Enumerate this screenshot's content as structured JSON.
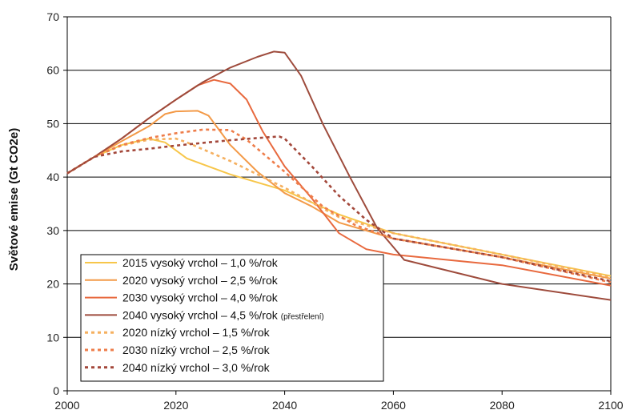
{
  "chart_data": {
    "type": "line",
    "ylabel": "Světové emise (Gt CO2e)",
    "xlim": [
      2000,
      2100
    ],
    "ylim": [
      0,
      70
    ],
    "x_ticks": [
      "2000",
      "2020",
      "2040",
      "2060",
      "2080",
      "2100"
    ],
    "y_ticks": [
      "0",
      "10",
      "20",
      "30",
      "40",
      "50",
      "60",
      "70"
    ],
    "grid": "horizontal",
    "legend_position": "bottom-left",
    "series": [
      {
        "name": "2015 vysoký vrchol – 1,0 %/rok",
        "color": "#f7c64a",
        "dash": "solid",
        "points": [
          [
            2000,
            40.7
          ],
          [
            2005,
            43.8
          ],
          [
            2010,
            46.0
          ],
          [
            2015,
            47.2
          ],
          [
            2018,
            46.5
          ],
          [
            2022,
            43.5
          ],
          [
            2030,
            40.5
          ],
          [
            2040,
            37.5
          ],
          [
            2050,
            33.0
          ],
          [
            2060,
            29.5
          ],
          [
            2080,
            25.5
          ],
          [
            2100,
            21.5
          ]
        ]
      },
      {
        "name": "2020 vysoký vrchol – 2,5 %/rok",
        "color": "#f39a48",
        "dash": "solid",
        "points": [
          [
            2000,
            40.7
          ],
          [
            2005,
            43.8
          ],
          [
            2010,
            46.7
          ],
          [
            2015,
            49.5
          ],
          [
            2018,
            51.8
          ],
          [
            2020,
            52.3
          ],
          [
            2024,
            52.4
          ],
          [
            2026,
            51.5
          ],
          [
            2030,
            46.0
          ],
          [
            2035,
            41.0
          ],
          [
            2040,
            37.0
          ],
          [
            2045,
            34.5
          ],
          [
            2050,
            31.5
          ],
          [
            2060,
            28.5
          ],
          [
            2080,
            25.0
          ],
          [
            2100,
            21.0
          ]
        ]
      },
      {
        "name": "2030 vysoký vrchol – 4,0 %/rok",
        "color": "#e8693e",
        "dash": "solid",
        "points": [
          [
            2000,
            40.7
          ],
          [
            2005,
            43.8
          ],
          [
            2010,
            47.2
          ],
          [
            2015,
            51.0
          ],
          [
            2020,
            54.5
          ],
          [
            2024,
            57.2
          ],
          [
            2027,
            58.2
          ],
          [
            2030,
            57.5
          ],
          [
            2033,
            54.5
          ],
          [
            2036,
            48.5
          ],
          [
            2040,
            42.0
          ],
          [
            2045,
            36.0
          ],
          [
            2050,
            29.5
          ],
          [
            2055,
            26.5
          ],
          [
            2060,
            25.5
          ],
          [
            2080,
            23.5
          ],
          [
            2100,
            19.7
          ]
        ]
      },
      {
        "name": "2040 vysoký vrchol – 4,5 %/rok",
        "note": "(přestřelení)",
        "color": "#9e4b3c",
        "dash": "solid",
        "points": [
          [
            2000,
            40.7
          ],
          [
            2005,
            43.8
          ],
          [
            2010,
            47.2
          ],
          [
            2015,
            51.0
          ],
          [
            2020,
            54.5
          ],
          [
            2025,
            57.8
          ],
          [
            2030,
            60.5
          ],
          [
            2035,
            62.5
          ],
          [
            2038,
            63.5
          ],
          [
            2040,
            63.3
          ],
          [
            2043,
            59.0
          ],
          [
            2047,
            50.0
          ],
          [
            2052,
            40.0
          ],
          [
            2057,
            30.5
          ],
          [
            2062,
            24.5
          ],
          [
            2068,
            23.0
          ],
          [
            2080,
            20.0
          ],
          [
            2100,
            17.0
          ]
        ]
      },
      {
        "name": "2020 nízký vrchol – 1,5 %/rok",
        "color": "#f5b060",
        "dash": "dotted",
        "points": [
          [
            2000,
            40.7
          ],
          [
            2005,
            43.8
          ],
          [
            2010,
            45.9
          ],
          [
            2015,
            47.0
          ],
          [
            2020,
            47.2
          ],
          [
            2022,
            46.5
          ],
          [
            2030,
            43.0
          ],
          [
            2040,
            38.0
          ],
          [
            2050,
            32.5
          ],
          [
            2060,
            29.5
          ],
          [
            2080,
            25.5
          ],
          [
            2100,
            21.3
          ]
        ]
      },
      {
        "name": "2030 nízký vrchol – 2,5 %/rok",
        "color": "#ee7d4a",
        "dash": "dotted",
        "points": [
          [
            2000,
            40.7
          ],
          [
            2005,
            43.8
          ],
          [
            2010,
            46.0
          ],
          [
            2015,
            47.3
          ],
          [
            2020,
            48.2
          ],
          [
            2025,
            48.9
          ],
          [
            2030,
            48.8
          ],
          [
            2033,
            47.0
          ],
          [
            2040,
            41.0
          ],
          [
            2047,
            34.5
          ],
          [
            2053,
            31.0
          ],
          [
            2060,
            28.5
          ],
          [
            2080,
            25.0
          ],
          [
            2100,
            20.3
          ]
        ]
      },
      {
        "name": "2040 nízký vrchol – 3,0 %/rok",
        "color": "#a3473a",
        "dash": "dotted",
        "points": [
          [
            2000,
            40.7
          ],
          [
            2005,
            43.8
          ],
          [
            2010,
            44.8
          ],
          [
            2015,
            45.3
          ],
          [
            2020,
            45.9
          ],
          [
            2025,
            46.4
          ],
          [
            2030,
            46.9
          ],
          [
            2035,
            47.3
          ],
          [
            2039,
            47.6
          ],
          [
            2040,
            47.2
          ],
          [
            2045,
            42.0
          ],
          [
            2050,
            36.5
          ],
          [
            2055,
            32.0
          ],
          [
            2060,
            28.5
          ],
          [
            2080,
            25.0
          ],
          [
            2100,
            20.5
          ]
        ]
      }
    ]
  }
}
